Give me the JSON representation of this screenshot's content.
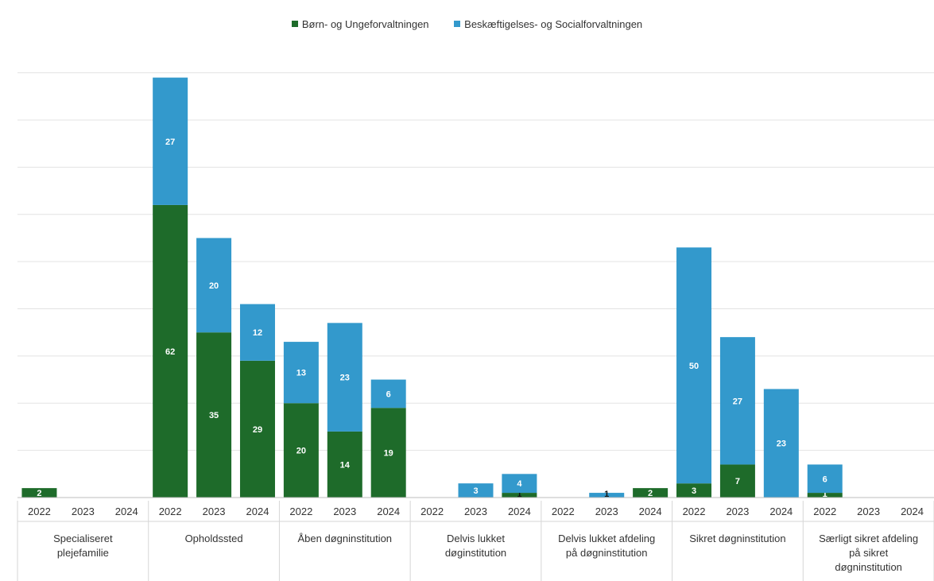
{
  "chart_data": {
    "type": "bar",
    "stacked": true,
    "legend_position": "top",
    "grid": true,
    "ylim": [
      0,
      95
    ],
    "groups": [
      {
        "label": "Specialiseret plejefamilie",
        "label_lines": [
          "Specialiseret",
          "plejefamilie"
        ]
      },
      {
        "label": "Opholdssted",
        "label_lines": [
          "Opholdssted"
        ]
      },
      {
        "label": "Åben døgninstitution",
        "label_lines": [
          "Åben døgninstitution"
        ]
      },
      {
        "label": "Delvis lukket døginstitution",
        "label_lines": [
          "Delvis lukket",
          "døginstitution"
        ]
      },
      {
        "label": "Delvis lukket afdeling på døgninstitution",
        "label_lines": [
          "Delvis lukket afdeling",
          "på døgninstitution"
        ]
      },
      {
        "label": "Sikret døgninstitution",
        "label_lines": [
          "Sikret døgninstitution"
        ]
      },
      {
        "label": "Særligt sikret afdeling på sikret døgninstitution",
        "label_lines": [
          "Særligt sikret afdeling",
          "på sikret",
          "døgninstitution"
        ]
      }
    ],
    "years": [
      "2022",
      "2023",
      "2024"
    ],
    "series": [
      {
        "name": "Børn- og Ungeforvaltningen",
        "color": "#1e6b2a",
        "values": [
          [
            2,
            null,
            null
          ],
          [
            62,
            35,
            29
          ],
          [
            20,
            14,
            19
          ],
          [
            null,
            null,
            1
          ],
          [
            null,
            null,
            2
          ],
          [
            3,
            7,
            null
          ],
          [
            1,
            null,
            null
          ]
        ]
      },
      {
        "name": "Beskæftigelses- og Socialforvaltningen",
        "color": "#3399cc",
        "values": [
          [
            null,
            null,
            null
          ],
          [
            27,
            20,
            12
          ],
          [
            13,
            23,
            6
          ],
          [
            null,
            3,
            4
          ],
          [
            null,
            1,
            null
          ],
          [
            50,
            27,
            23
          ],
          [
            6,
            null,
            null
          ]
        ]
      }
    ]
  }
}
